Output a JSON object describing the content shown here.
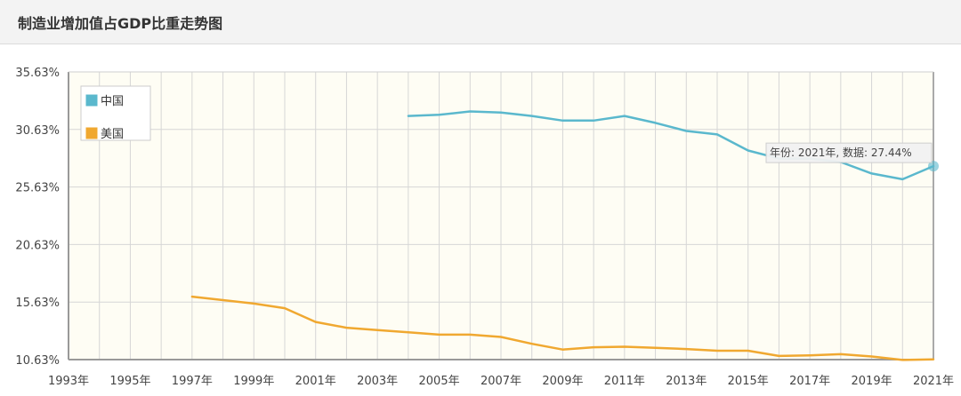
{
  "header": {
    "title": "制造业增加值占GDP比重走势图"
  },
  "chart_data": {
    "type": "line",
    "title": "制造业增加值占GDP比重走势图",
    "xlabel": "",
    "ylabel": "",
    "xlim": [
      1993,
      2021
    ],
    "ylim": [
      10.63,
      35.63
    ],
    "y_ticks": [
      "10.63%",
      "15.63%",
      "20.63%",
      "25.63%",
      "30.63%",
      "35.63%"
    ],
    "x_ticks": [
      "1993年",
      "1995年",
      "1997年",
      "1999年",
      "2001年",
      "2003年",
      "2005年",
      "2007年",
      "2009年",
      "2011年",
      "2013年",
      "2015年",
      "2017年",
      "2019年",
      "2021年"
    ],
    "grid": true,
    "legend_position": "top-left",
    "series": [
      {
        "name": "中国",
        "color": "#5ab8cd",
        "points": [
          [
            2004,
            31.8
          ],
          [
            2005,
            31.9
          ],
          [
            2006,
            32.2
          ],
          [
            2007,
            32.1
          ],
          [
            2008,
            31.8
          ],
          [
            2009,
            31.4
          ],
          [
            2010,
            31.4
          ],
          [
            2011,
            31.8
          ],
          [
            2012,
            31.2
          ],
          [
            2013,
            30.5
          ],
          [
            2014,
            30.2
          ],
          [
            2015,
            28.8
          ],
          [
            2016,
            28.1
          ],
          [
            2017,
            28.1
          ],
          [
            2018,
            27.8
          ],
          [
            2019,
            26.8
          ],
          [
            2020,
            26.3
          ],
          [
            2021,
            27.44
          ]
        ]
      },
      {
        "name": "美国",
        "color": "#f0a830",
        "points": [
          [
            1997,
            16.1
          ],
          [
            1998,
            15.8
          ],
          [
            1999,
            15.5
          ],
          [
            2000,
            15.1
          ],
          [
            2001,
            13.9
          ],
          [
            2002,
            13.4
          ],
          [
            2003,
            13.2
          ],
          [
            2004,
            13.0
          ],
          [
            2005,
            12.8
          ],
          [
            2006,
            12.8
          ],
          [
            2007,
            12.6
          ],
          [
            2008,
            12.0
          ],
          [
            2009,
            11.5
          ],
          [
            2010,
            11.7
          ],
          [
            2011,
            11.75
          ],
          [
            2012,
            11.65
          ],
          [
            2013,
            11.55
          ],
          [
            2014,
            11.4
          ],
          [
            2015,
            11.4
          ],
          [
            2016,
            10.95
          ],
          [
            2017,
            11.0
          ],
          [
            2018,
            11.1
          ],
          [
            2019,
            10.9
          ],
          [
            2020,
            10.6
          ],
          [
            2021,
            10.65
          ]
        ]
      }
    ],
    "tooltip": {
      "text": "年份: 2021年, 数据: 27.44%",
      "year": 2021,
      "value": 27.44
    }
  }
}
